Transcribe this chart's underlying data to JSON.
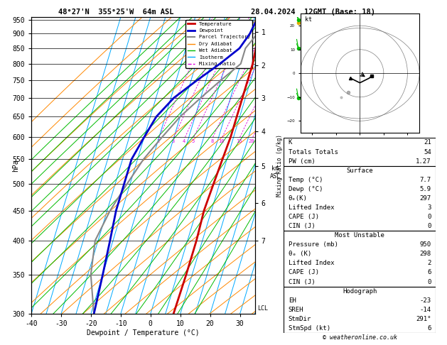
{
  "title_left": "48°27'N  355°25'W  64m ASL",
  "title_right": "28.04.2024  12GMT (Base: 18)",
  "xlabel": "Dewpoint / Temperature (°C)",
  "ylabel_left": "hPa",
  "bg_color": "#ffffff",
  "plot_bg": "#ffffff",
  "pressure_levels": [
    300,
    350,
    400,
    450,
    500,
    550,
    600,
    650,
    700,
    750,
    800,
    850,
    900,
    950
  ],
  "temp_x": [
    7.7,
    8,
    8,
    7.5,
    8,
    8.5,
    9,
    9,
    9,
    9,
    9,
    8.5,
    8,
    8
  ],
  "temp_p": [
    300,
    350,
    400,
    450,
    500,
    550,
    600,
    650,
    700,
    750,
    800,
    850,
    900,
    950
  ],
  "dew_x": [
    -19,
    -20,
    -21,
    -22,
    -22,
    -22,
    -20,
    -18,
    -14,
    -8,
    -2,
    3,
    5,
    5.9
  ],
  "dew_p": [
    300,
    350,
    400,
    450,
    500,
    550,
    600,
    650,
    700,
    750,
    800,
    850,
    900,
    950
  ],
  "parcel_x": [
    -19,
    -24,
    -26,
    -24,
    -21,
    -18,
    -14,
    -10,
    -5,
    0,
    5,
    5,
    7.5,
    7.7
  ],
  "parcel_p": [
    300,
    350,
    400,
    450,
    500,
    550,
    600,
    650,
    700,
    750,
    800,
    850,
    900,
    950
  ],
  "temp_color": "#cc0000",
  "dew_color": "#0000cc",
  "parcel_color": "#888888",
  "isotherm_color": "#00aaff",
  "dry_adiabat_color": "#ff8800",
  "wet_adiabat_color": "#00bb00",
  "mixing_ratio_color": "#dd00dd",
  "xlim": [
    -40,
    35
  ],
  "pmin": 300,
  "pmax": 960,
  "skew_deg": 45,
  "isotherm_vals": [
    -40,
    -35,
    -30,
    -25,
    -20,
    -15,
    -10,
    -5,
    0,
    5,
    10,
    15,
    20,
    25,
    30,
    35
  ],
  "dry_adiabat_T0s": [
    -30,
    -20,
    -10,
    0,
    10,
    20,
    30,
    40,
    50,
    60,
    70,
    80,
    90,
    100,
    110,
    120,
    130,
    140,
    150,
    160
  ],
  "wet_adiabat_T0s": [
    -20,
    -16,
    -12,
    -8,
    -4,
    0,
    4,
    8,
    12,
    16,
    20,
    24,
    28,
    32,
    36,
    40,
    44
  ],
  "mixing_ratio_vals": [
    2,
    3,
    4,
    5,
    8,
    10,
    15,
    20,
    25
  ],
  "km_ticks": [
    1,
    2,
    3,
    4,
    5,
    6,
    7
  ],
  "km_pressures": [
    906,
    796,
    700,
    614,
    535,
    464,
    400
  ],
  "lcl_pressure": 940,
  "wind_p": [
    950,
    850,
    700,
    500,
    400,
    300
  ],
  "wind_barb_data": [
    {
      "p": 950,
      "u": 2,
      "v": -3
    },
    {
      "p": 850,
      "u": 1,
      "v": -2
    },
    {
      "p": 700,
      "u": 0,
      "v": -3
    },
    {
      "p": 500,
      "u": -1,
      "v": -4
    },
    {
      "p": 400,
      "u": -2,
      "v": -3
    },
    {
      "p": 300,
      "u": -3,
      "v": -2
    }
  ],
  "K_index": 21,
  "Totals_Totals": 54,
  "PW_cm": 1.27,
  "surf_temp": 7.7,
  "surf_dewp": 5.9,
  "surf_theta_e": 297,
  "surf_lifted_index": 3,
  "surf_CAPE": 0,
  "surf_CIN": 0,
  "mu_pressure": 950,
  "mu_theta_e": 298,
  "mu_lifted_index": 2,
  "mu_CAPE": 6,
  "mu_CIN": 0,
  "EH": -23,
  "SREH": -14,
  "StmDir": 291,
  "StmSpd_kt": 6,
  "copyright": "© weatheronline.co.uk"
}
